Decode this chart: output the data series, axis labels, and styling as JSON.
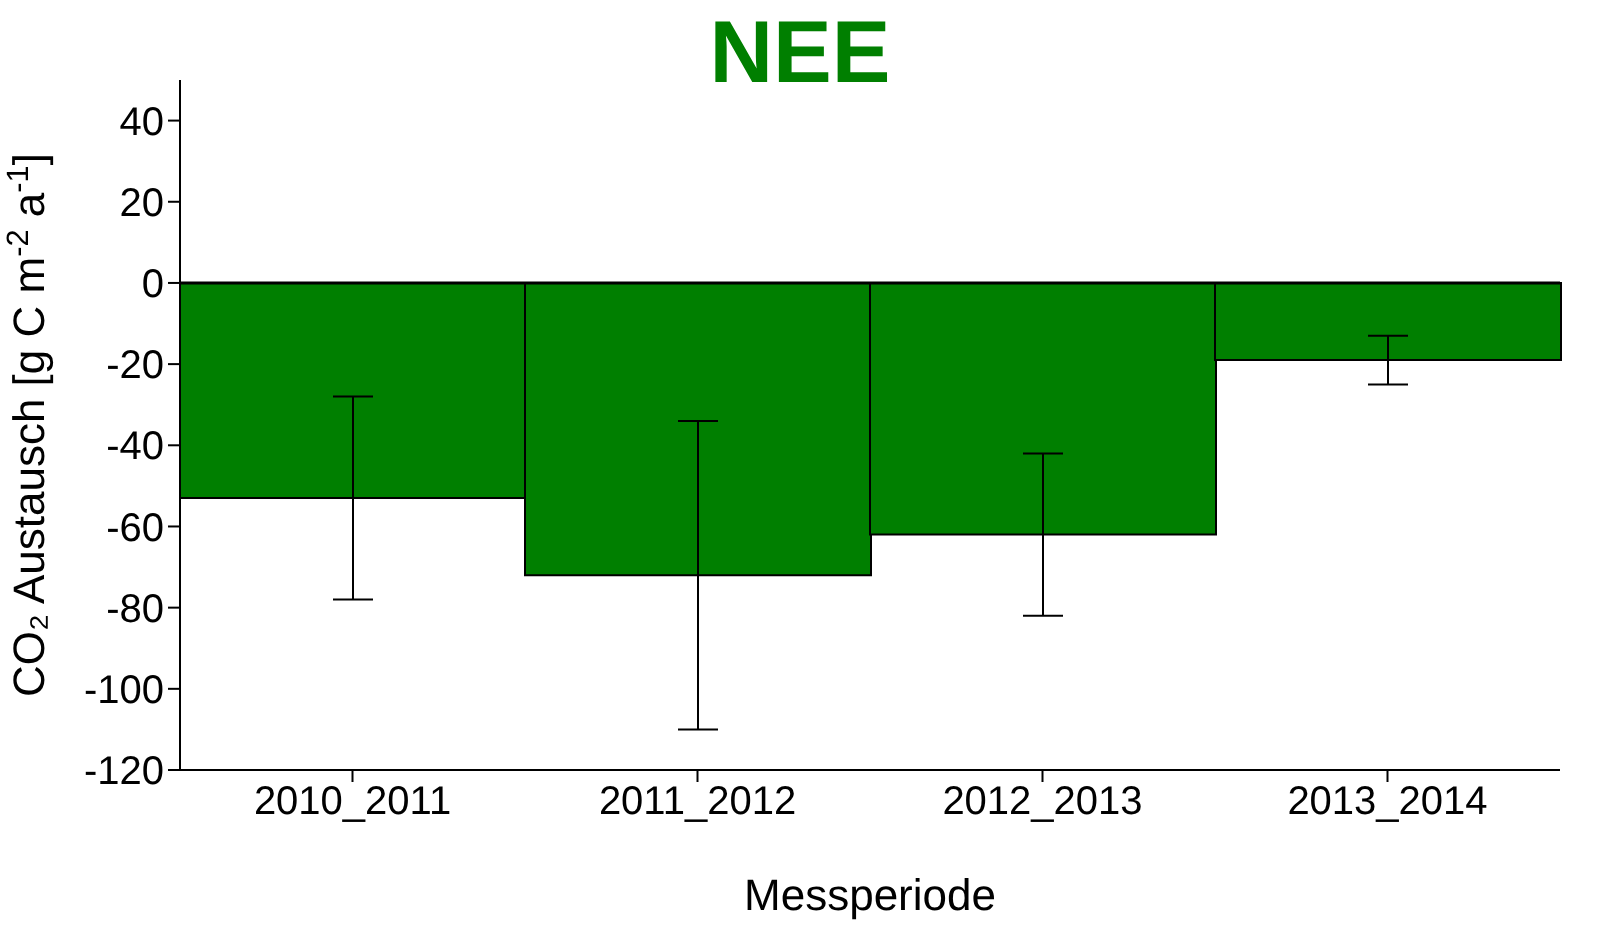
{
  "chart_data": {
    "type": "bar",
    "title": "NEE",
    "xlabel": "Messperiode",
    "ylabel": "CO₂ Austausch [g C m$^{-2}$ a$^{-1}$]",
    "categories": [
      "2010_2011",
      "2011_2012",
      "2012_2013",
      "2013_2014"
    ],
    "values": [
      -53,
      -72,
      -62,
      -19
    ],
    "errors": [
      25,
      38,
      20,
      6
    ],
    "color": "#007f00",
    "ylim": [
      -120,
      50
    ],
    "yticks": [
      -120,
      -100,
      -80,
      -60,
      -40,
      -20,
      0,
      20,
      40
    ],
    "ref_lines": [
      {
        "axis": "y",
        "value": 0,
        "color": "#000000"
      }
    ],
    "grid": false,
    "legend": false
  }
}
